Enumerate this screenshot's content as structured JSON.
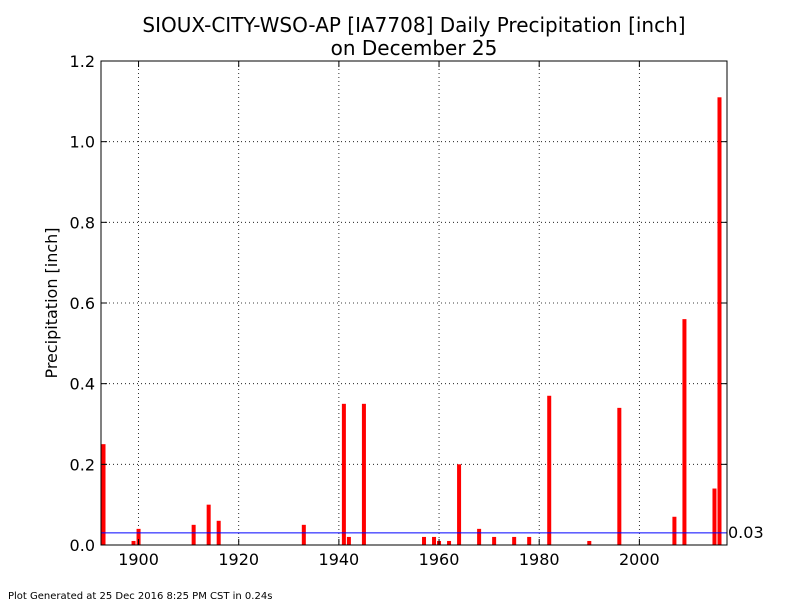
{
  "chart_data": {
    "type": "bar",
    "title_line1": "SIOUX-CITY-WSO-AP [IA7708] Daily Precipitation [inch]",
    "title_line2": "on December 25",
    "xlabel": "",
    "ylabel": "Precipitation [inch]",
    "xlim": [
      1892.5,
      2017.5
    ],
    "ylim": [
      0,
      1.2
    ],
    "xticks": [
      1900,
      1920,
      1940,
      1960,
      1980,
      2000
    ],
    "yticks": [
      "0.0",
      "0.2",
      "0.4",
      "0.6",
      "0.8",
      "1.0",
      "1.2"
    ],
    "grid": true,
    "bar_color": "#ff0000",
    "x": [
      1893,
      1899,
      1900,
      1911,
      1914,
      1916,
      1933,
      1941,
      1942,
      1945,
      1957,
      1959,
      1960,
      1962,
      1964,
      1968,
      1971,
      1975,
      1978,
      1982,
      1990,
      1996,
      2007,
      2009,
      2015,
      2016
    ],
    "values": [
      0.25,
      0.01,
      0.04,
      0.05,
      0.1,
      0.06,
      0.05,
      0.35,
      0.02,
      0.35,
      0.02,
      0.02,
      0.01,
      0.01,
      0.2,
      0.04,
      0.02,
      0.02,
      0.02,
      0.37,
      0.01,
      0.34,
      0.07,
      0.56,
      0.14,
      1.11
    ],
    "average_line": {
      "value": 0.03,
      "label": "0.03",
      "color": "#0000ff"
    }
  },
  "footer": "Plot Generated at 25 Dec 2016 8:25 PM CST in 0.24s"
}
